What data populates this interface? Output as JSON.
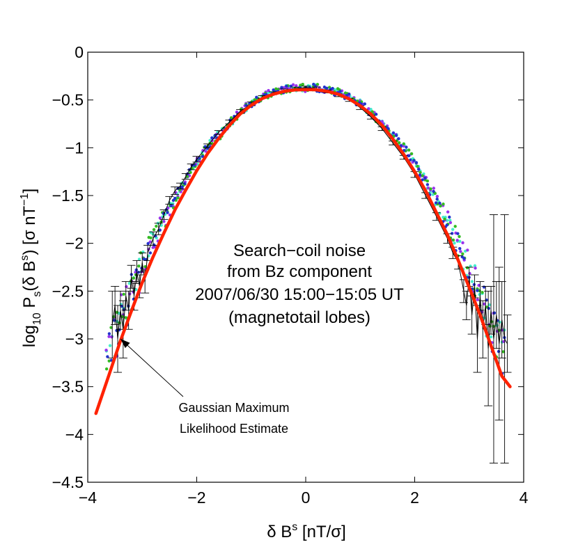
{
  "chart_data": {
    "type": "scatter",
    "title": "",
    "xlabel": {
      "main": "δ B",
      "sup": "s",
      "rest": " [nT/σ]"
    },
    "ylabel": {
      "pre": "log",
      "sub1": "10",
      "mid": " P",
      "sub2": "s",
      "mid2": "(δ B",
      "sup1": "s",
      "mid3": ") [σ nT",
      "sup2": "−1",
      "end": "]"
    },
    "xlim": [
      -4,
      4
    ],
    "ylim": [
      -4.5,
      0
    ],
    "x_ticks": [
      -4,
      -2,
      0,
      2,
      4
    ],
    "x_tick_labels": [
      "−4",
      "−2",
      "0",
      "2",
      "4"
    ],
    "y_ticks": [
      0,
      -0.5,
      -1,
      -1.5,
      -2,
      -2.5,
      -3,
      -3.5,
      -4,
      -4.5
    ],
    "y_tick_labels": [
      "0",
      "−0.5",
      "−1",
      "−1.5",
      "−2",
      "−2.5",
      "−3",
      "−3.5",
      "−4",
      "−4.5"
    ],
    "grid": false,
    "annotation_lines": [
      "Search−coil noise",
      "from Bz component",
      "2007/06/30 15:00−15:05 UT",
      "(magnetotail lobes)"
    ],
    "arrow_label": [
      "Gaussian Maximum",
      "Likelihood Estimate"
    ],
    "arrow_target": {
      "x": -3.4,
      "y": -3.0
    },
    "fit": {
      "name": "Gaussian Maximum Likelihood Estimate",
      "color": "#ff2200",
      "x": [
        -3.85,
        -3.6,
        -3.4,
        -3.2,
        -3.0,
        -2.8,
        -2.6,
        -2.4,
        -2.2,
        -2.0,
        -1.8,
        -1.6,
        -1.4,
        -1.2,
        -1.0,
        -0.8,
        -0.6,
        -0.4,
        -0.2,
        0.0,
        0.1,
        0.2,
        0.4,
        0.6,
        0.8,
        1.0,
        1.2,
        1.4,
        1.6,
        1.8,
        2.0,
        2.2,
        2.4,
        2.6,
        2.8,
        3.0,
        3.2,
        3.4,
        3.6,
        3.75
      ],
      "y": [
        -3.78,
        -3.36,
        -3.02,
        -2.71,
        -2.41,
        -2.14,
        -1.89,
        -1.65,
        -1.44,
        -1.24,
        -1.06,
        -0.905,
        -0.765,
        -0.645,
        -0.555,
        -0.485,
        -0.44,
        -0.41,
        -0.395,
        -0.392,
        -0.392,
        -0.394,
        -0.41,
        -0.44,
        -0.49,
        -0.56,
        -0.65,
        -0.765,
        -0.91,
        -1.07,
        -1.25,
        -1.45,
        -1.68,
        -1.91,
        -2.18,
        -2.46,
        -2.75,
        -3.07,
        -3.39,
        -3.5
      ]
    },
    "histogram": {
      "name": "",
      "color": "#000000",
      "x": [
        -3.55,
        -3.5,
        -3.45,
        -3.4,
        -3.35,
        -3.3,
        -3.25,
        -3.2,
        -3.15,
        -3.1,
        -3.05,
        -3.0,
        -2.95,
        -2.9,
        -2.8,
        -2.7,
        -2.6,
        -2.5,
        -2.4,
        -2.3,
        -2.2,
        -2.1,
        -2.0,
        -1.8,
        -1.6,
        -1.4,
        -1.2,
        -1.0,
        -0.8,
        -0.6,
        -0.4,
        -0.2,
        0.0,
        0.2,
        0.4,
        0.6,
        0.8,
        1.0,
        1.2,
        1.4,
        1.6,
        1.8,
        2.0,
        2.2,
        2.4,
        2.6,
        2.7,
        2.8,
        2.9,
        2.95,
        3.0,
        3.05,
        3.1,
        3.15,
        3.2,
        3.25,
        3.3,
        3.35,
        3.4,
        3.45,
        3.5,
        3.55,
        3.6,
        3.65,
        3.7
      ],
      "y": [
        -2.85,
        -2.65,
        -3.0,
        -2.7,
        -2.9,
        -2.55,
        -2.7,
        -2.35,
        -2.55,
        -2.3,
        -2.45,
        -2.2,
        -2.4,
        -2.1,
        -1.95,
        -1.85,
        -1.7,
        -1.55,
        -1.45,
        -1.4,
        -1.3,
        -1.2,
        -1.12,
        -0.98,
        -0.84,
        -0.73,
        -0.62,
        -0.54,
        -0.47,
        -0.43,
        -0.4,
        -0.38,
        -0.37,
        -0.38,
        -0.41,
        -0.45,
        -0.5,
        -0.58,
        -0.68,
        -0.8,
        -0.95,
        -1.1,
        -1.28,
        -1.5,
        -1.72,
        -1.95,
        -2.1,
        -2.2,
        -2.5,
        -2.65,
        -2.35,
        -2.75,
        -2.45,
        -3.0,
        -2.55,
        -2.9,
        -2.65,
        -3.1,
        -2.7,
        -3.0,
        -2.75,
        -3.05,
        -2.8,
        -3.0,
        -3.05
      ],
      "err": [
        0.35,
        0.2,
        0.35,
        0.2,
        0.3,
        0.15,
        0.2,
        0.12,
        0.15,
        0.12,
        0.12,
        0.1,
        0.12,
        0.08,
        0.07,
        0.06,
        0.05,
        0.04,
        0.04,
        0.03,
        0.03,
        0.03,
        0.03,
        0.02,
        0.02,
        0.02,
        0.02,
        0.02,
        0.015,
        0.015,
        0.015,
        0.015,
        0.015,
        0.015,
        0.015,
        0.015,
        0.015,
        0.02,
        0.02,
        0.02,
        0.02,
        0.02,
        0.03,
        0.03,
        0.04,
        0.05,
        0.06,
        0.07,
        0.12,
        0.15,
        0.1,
        0.2,
        0.12,
        0.35,
        0.15,
        0.3,
        0.2,
        0.6,
        0.25,
        1.3,
        0.35,
        0.8,
        0.4,
        1.3,
        0.3
      ]
    },
    "scatter_series": [
      {
        "name": "",
        "color": "#44eecc"
      },
      {
        "name": "",
        "color": "#9933ee"
      },
      {
        "name": "",
        "color": "#33bb22"
      },
      {
        "name": "",
        "color": "#2233cc"
      }
    ]
  }
}
